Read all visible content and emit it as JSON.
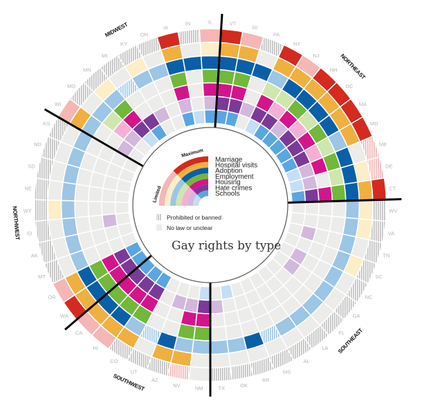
{
  "chart_data": {
    "type": "radial-heatmap",
    "title": "Gay rights by type",
    "rings_inner_to_outer": [
      "Schools",
      "Hate crimes",
      "Housing",
      "Employment",
      "Adoption",
      "Hospital visits",
      "Marriage"
    ],
    "legend": {
      "categories": [
        "Marriage",
        "Hospital visits",
        "Adoption",
        "Employment",
        "Housing",
        "Hate crimes",
        "Schools"
      ],
      "scale_max_label": "Maximum",
      "scale_min_label": "Limited",
      "prohibited_label": "Prohibited or banned",
      "nolaw_label": "No law or unclear"
    },
    "value_codes": {
      "M": "maximum",
      "L": "limited",
      "P": "prohibited or banned",
      "N": "no law or unclear"
    },
    "colors": {
      "Marriage": {
        "max": "#d42a1f",
        "lim": "#f4b7b5"
      },
      "Hospital visits": {
        "max": "#f0b040",
        "lim": "#fbeec8"
      },
      "Adoption": {
        "max": "#0a60a8",
        "lim": "#9cc5e6"
      },
      "Employment": {
        "max": "#72b83a",
        "lim": "#cfe6ad"
      },
      "Housing": {
        "max": "#d4148c",
        "lim": "#f4b0d4"
      },
      "Hate crimes": {
        "max": "#7c3a98",
        "lim": "#d2b8dc"
      },
      "Schools": {
        "max": "#5aa6e0",
        "lim": "#c4def3"
      },
      "nolaw": "#ececea",
      "prohibited_stripe": "#bdbdbd"
    },
    "regions": [
      {
        "name": "MIDWEST",
        "states": [
          "WI",
          "MO",
          "MN",
          "MI",
          "KY",
          "OH",
          "IA",
          "IN",
          "IL"
        ]
      },
      {
        "name": "NORTHEAST",
        "states": [
          "VT",
          "RI",
          "PA",
          "NY",
          "NJ",
          "NH",
          "DC",
          "MA",
          "MD",
          "ME",
          "DE",
          "CT"
        ]
      },
      {
        "name": "SOUTHEAST",
        "states": [
          "WV",
          "VA",
          "TN",
          "SC",
          "NC",
          "GA",
          "FL",
          "LA",
          "AL",
          "MS",
          "AR",
          "OK",
          "TX"
        ]
      },
      {
        "name": "SOUTHWEST",
        "states": [
          "NM",
          "NV",
          "AZ",
          "UT",
          "CO",
          "HI",
          "CA"
        ]
      },
      {
        "name": "NORTHWEST",
        "states": [
          "WA",
          "OR",
          "MT",
          "AK",
          "ID",
          "WY",
          "NE",
          "SD",
          "ND",
          "KS"
        ]
      }
    ],
    "states": [
      {
        "abbr": "WI",
        "schools": "N",
        "hate_crimes": "L",
        "housing": "N",
        "employment": "N",
        "adoption": "L",
        "hospital_visits": "M",
        "marriage": "L"
      },
      {
        "abbr": "MO",
        "schools": "N",
        "hate_crimes": "L",
        "housing": "L",
        "employment": "L",
        "adoption": "L",
        "hospital_visits": "N",
        "marriage": "P"
      },
      {
        "abbr": "MN",
        "schools": "L",
        "hate_crimes": "M",
        "housing": "M",
        "employment": "M",
        "adoption": "L",
        "hospital_visits": "L",
        "marriage": "P"
      },
      {
        "abbr": "MI",
        "schools": "M",
        "hate_crimes": "M",
        "housing": "N",
        "employment": "N",
        "adoption": "P",
        "hospital_visits": "N",
        "marriage": "P"
      },
      {
        "abbr": "KY",
        "schools": "N",
        "hate_crimes": "L",
        "housing": "N",
        "employment": "N",
        "adoption": "L",
        "hospital_visits": "L",
        "marriage": "P"
      },
      {
        "abbr": "OH",
        "schools": "N",
        "hate_crimes": "N",
        "housing": "N",
        "employment": "N",
        "adoption": "L",
        "hospital_visits": "N",
        "marriage": "P"
      },
      {
        "abbr": "IA",
        "schools": "M",
        "hate_crimes": "L",
        "housing": "M",
        "employment": "M",
        "adoption": "M",
        "hospital_visits": "M",
        "marriage": "M"
      },
      {
        "abbr": "IN",
        "schools": "L",
        "hate_crimes": "N",
        "housing": "N",
        "employment": "N",
        "adoption": "M",
        "hospital_visits": "N",
        "marriage": "P"
      },
      {
        "abbr": "IL",
        "schools": "M",
        "hate_crimes": "L",
        "housing": "M",
        "employment": "M",
        "adoption": "M",
        "hospital_visits": "L",
        "marriage": "L"
      },
      {
        "abbr": "VT",
        "schools": "M",
        "hate_crimes": "M",
        "housing": "M",
        "employment": "M",
        "adoption": "M",
        "hospital_visits": "M",
        "marriage": "M"
      },
      {
        "abbr": "RI",
        "schools": "M",
        "hate_crimes": "M",
        "housing": "M",
        "employment": "M",
        "adoption": "M",
        "hospital_visits": "M",
        "marriage": "L"
      },
      {
        "abbr": "PA",
        "schools": "N",
        "hate_crimes": "L",
        "housing": "N",
        "employment": "N",
        "adoption": "M",
        "hospital_visits": "N",
        "marriage": "P"
      },
      {
        "abbr": "NY",
        "schools": "L",
        "hate_crimes": "M",
        "housing": "M",
        "employment": "L",
        "adoption": "L",
        "hospital_visits": "M",
        "marriage": "M"
      },
      {
        "abbr": "NJ",
        "schools": "M",
        "hate_crimes": "M",
        "housing": "L",
        "employment": "L",
        "adoption": "M",
        "hospital_visits": "M",
        "marriage": "L"
      },
      {
        "abbr": "NH",
        "schools": "M",
        "hate_crimes": "L",
        "housing": "M",
        "employment": "M",
        "adoption": "M",
        "hospital_visits": "M",
        "marriage": "M"
      },
      {
        "abbr": "DC",
        "schools": "M",
        "hate_crimes": "M",
        "housing": "L",
        "employment": "L",
        "adoption": "M",
        "hospital_visits": "M",
        "marriage": "M"
      },
      {
        "abbr": "MA",
        "schools": "M",
        "hate_crimes": "M",
        "housing": "M",
        "employment": "M",
        "adoption": "M",
        "hospital_visits": "M",
        "marriage": "M"
      },
      {
        "abbr": "MD",
        "schools": "M",
        "hate_crimes": "M",
        "housing": "L",
        "employment": "L",
        "adoption": "L",
        "hospital_visits": "M",
        "marriage": "M"
      },
      {
        "abbr": "ME",
        "schools": "L",
        "hate_crimes": "L",
        "housing": "M",
        "employment": "M",
        "adoption": "M",
        "hospital_visits": "N",
        "marriage": "P"
      },
      {
        "abbr": "DE",
        "schools": "L",
        "hate_crimes": "L",
        "housing": "N",
        "employment": "L",
        "adoption": "M",
        "hospital_visits": "L",
        "marriage": "P"
      },
      {
        "abbr": "CT",
        "schools": "M",
        "hate_crimes": "M",
        "housing": "M",
        "employment": "M",
        "adoption": "M",
        "hospital_visits": "M",
        "marriage": "M"
      },
      {
        "abbr": "WV",
        "schools": "N",
        "hate_crimes": "N",
        "housing": "N",
        "employment": "N",
        "adoption": "L",
        "hospital_visits": "L",
        "marriage": "P"
      },
      {
        "abbr": "VA",
        "schools": "N",
        "hate_crimes": "N",
        "housing": "N",
        "employment": "N",
        "adoption": "L",
        "hospital_visits": "L",
        "marriage": "P"
      },
      {
        "abbr": "TN",
        "schools": "N",
        "hate_crimes": "L",
        "housing": "N",
        "employment": "N",
        "adoption": "L",
        "hospital_visits": "N",
        "marriage": "P"
      },
      {
        "abbr": "SC",
        "schools": "N",
        "hate_crimes": "N",
        "housing": "N",
        "employment": "N",
        "adoption": "L",
        "hospital_visits": "L",
        "marriage": "P"
      },
      {
        "abbr": "NC",
        "schools": "N",
        "hate_crimes": "L",
        "housing": "N",
        "employment": "N",
        "adoption": "L",
        "hospital_visits": "N",
        "marriage": "P"
      },
      {
        "abbr": "GA",
        "schools": "N",
        "hate_crimes": "L",
        "housing": "N",
        "employment": "N",
        "adoption": "L",
        "hospital_visits": "N",
        "marriage": "P"
      },
      {
        "abbr": "FL",
        "schools": "N",
        "hate_crimes": "N",
        "housing": "N",
        "employment": "N",
        "adoption": "L",
        "hospital_visits": "N",
        "marriage": "P"
      },
      {
        "abbr": "LA",
        "schools": "N",
        "hate_crimes": "N",
        "housing": "N",
        "employment": "N",
        "adoption": "L",
        "hospital_visits": "N",
        "marriage": "P"
      },
      {
        "abbr": "AL",
        "schools": "N",
        "hate_crimes": "N",
        "housing": "N",
        "employment": "N",
        "adoption": "L",
        "hospital_visits": "N",
        "marriage": "P"
      },
      {
        "abbr": "MS",
        "schools": "N",
        "hate_crimes": "N",
        "housing": "N",
        "employment": "N",
        "adoption": "P",
        "hospital_visits": "N",
        "marriage": "P"
      },
      {
        "abbr": "AR",
        "schools": "N",
        "hate_crimes": "N",
        "housing": "N",
        "employment": "N",
        "adoption": "M",
        "hospital_visits": "N",
        "marriage": "P"
      },
      {
        "abbr": "OK",
        "schools": "L",
        "hate_crimes": "N",
        "housing": "N",
        "employment": "N",
        "adoption": "L",
        "hospital_visits": "N",
        "marriage": "P"
      },
      {
        "abbr": "TX",
        "schools": "N",
        "hate_crimes": "L",
        "housing": "N",
        "employment": "N",
        "adoption": "L",
        "hospital_visits": "N",
        "marriage": "P"
      },
      {
        "abbr": "NM",
        "schools": "L",
        "hate_crimes": "M",
        "housing": "M",
        "employment": "M",
        "adoption": "L",
        "hospital_visits": "N",
        "marriage": "N"
      },
      {
        "abbr": "NV",
        "schools": "N",
        "hate_crimes": "L",
        "housing": "M",
        "employment": "M",
        "adoption": "L",
        "hospital_visits": "M",
        "marriage": "P"
      },
      {
        "abbr": "AZ",
        "schools": "N",
        "hate_crimes": "L",
        "housing": "N",
        "employment": "N",
        "adoption": "M",
        "hospital_visits": "M",
        "marriage": "P"
      },
      {
        "abbr": "UT",
        "schools": "N",
        "hate_crimes": "N",
        "housing": "N",
        "employment": "N",
        "adoption": "P",
        "hospital_visits": "N",
        "marriage": "P"
      },
      {
        "abbr": "CO",
        "schools": "M",
        "hate_crimes": "M",
        "housing": "M",
        "employment": "M",
        "adoption": "L",
        "hospital_visits": "M",
        "marriage": "P"
      },
      {
        "abbr": "HI",
        "schools": "M",
        "hate_crimes": "M",
        "housing": "M",
        "employment": "M",
        "adoption": "M",
        "hospital_visits": "M",
        "marriage": "L"
      },
      {
        "abbr": "CA",
        "schools": "M",
        "hate_crimes": "M",
        "housing": "M",
        "employment": "M",
        "adoption": "M",
        "hospital_visits": "M",
        "marriage": "L"
      },
      {
        "abbr": "WA",
        "schools": "M",
        "hate_crimes": "M",
        "housing": "M",
        "employment": "M",
        "adoption": "M",
        "hospital_visits": "M",
        "marriage": "M"
      },
      {
        "abbr": "OR",
        "schools": "M",
        "hate_crimes": "M",
        "housing": "M",
        "employment": "M",
        "adoption": "M",
        "hospital_visits": "M",
        "marriage": "L"
      },
      {
        "abbr": "MT",
        "schools": "N",
        "hate_crimes": "N",
        "housing": "N",
        "employment": "N",
        "adoption": "L",
        "hospital_visits": "N",
        "marriage": "P"
      },
      {
        "abbr": "AK",
        "schools": "N",
        "hate_crimes": "N",
        "housing": "N",
        "employment": "N",
        "adoption": "L",
        "hospital_visits": "N",
        "marriage": "P"
      },
      {
        "abbr": "ID",
        "schools": "N",
        "hate_crimes": "L",
        "housing": "N",
        "employment": "N",
        "adoption": "L",
        "hospital_visits": "N",
        "marriage": "P"
      },
      {
        "abbr": "WY",
        "schools": "N",
        "hate_crimes": "N",
        "housing": "N",
        "employment": "N",
        "adoption": "L",
        "hospital_visits": "L",
        "marriage": "P"
      },
      {
        "abbr": "NE",
        "schools": "N",
        "hate_crimes": "N",
        "housing": "N",
        "employment": "N",
        "adoption": "L",
        "hospital_visits": "N",
        "marriage": "P"
      },
      {
        "abbr": "SD",
        "schools": "N",
        "hate_crimes": "N",
        "housing": "N",
        "employment": "N",
        "adoption": "L",
        "hospital_visits": "N",
        "marriage": "P"
      },
      {
        "abbr": "ND",
        "schools": "N",
        "hate_crimes": "N",
        "housing": "N",
        "employment": "N",
        "adoption": "L",
        "hospital_visits": "N",
        "marriage": "P"
      },
      {
        "abbr": "KS",
        "schools": "N",
        "hate_crimes": "N",
        "housing": "N",
        "employment": "N",
        "adoption": "L",
        "hospital_visits": "N",
        "marriage": "P"
      }
    ]
  }
}
